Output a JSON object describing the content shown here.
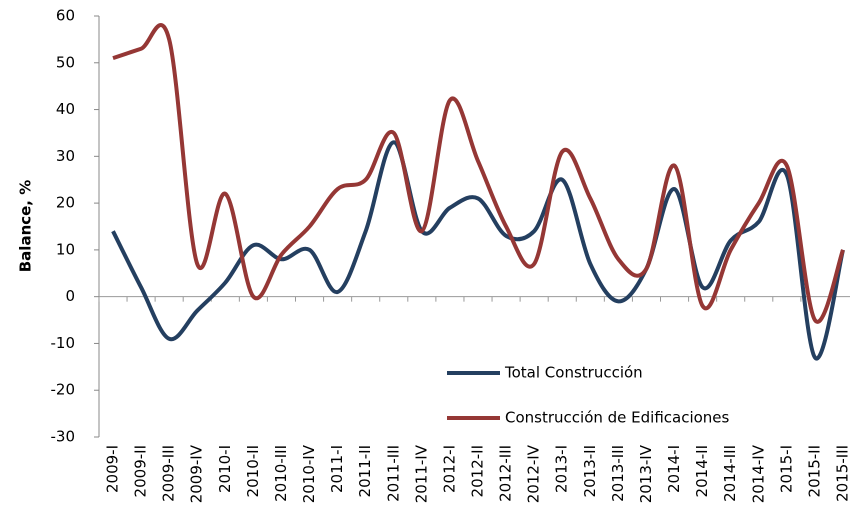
{
  "chart_data": {
    "type": "line",
    "y_label": "Balance, %",
    "categories": [
      "2009-I",
      "2009-II",
      "2009-III",
      "2009-IV",
      "2010-I",
      "2010-II",
      "2010-III",
      "2010-IV",
      "2011-I",
      "2011-II",
      "2011-III",
      "2011-IV",
      "2012-I",
      "2012-II",
      "2012-III",
      "2012-IV",
      "2013-I",
      "2013-II",
      "2013-III",
      "2013-IV",
      "2014-I",
      "2014-II",
      "2014-III",
      "2014-IV",
      "2015-I",
      "2015-II",
      "2015-III"
    ],
    "series": [
      {
        "name": "Total Construcción",
        "color": "#243f60",
        "values": [
          14,
          2,
          -9,
          -3,
          3,
          11,
          8,
          10,
          1,
          14,
          33,
          14,
          19,
          21,
          13,
          14,
          25,
          7,
          -1,
          6,
          23,
          2,
          12,
          16,
          26,
          -13,
          10
        ]
      },
      {
        "name": "Construcción de Edificaciones",
        "color": "#953735",
        "values": [
          51,
          53,
          55,
          7,
          22,
          0,
          9,
          15,
          23,
          25,
          35,
          14,
          42,
          29,
          15,
          7,
          31,
          21,
          8,
          6,
          28,
          -2,
          10,
          20,
          28,
          -5,
          10
        ]
      }
    ],
    "ylim": [
      -30,
      60
    ],
    "yticks": [
      -30,
      -20,
      -10,
      0,
      10,
      20,
      30,
      40,
      50,
      60
    ],
    "legend": "lower-right"
  }
}
